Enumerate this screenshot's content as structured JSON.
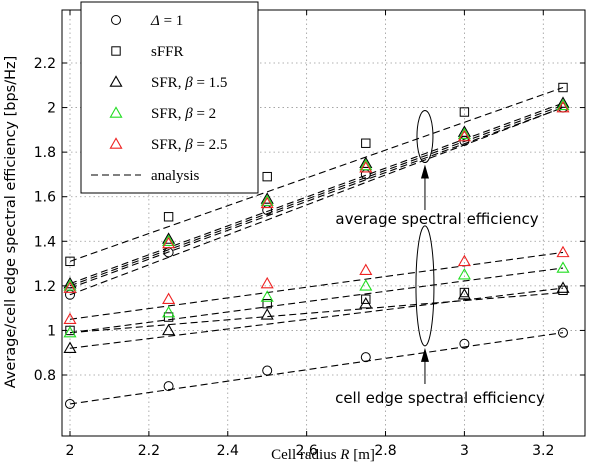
{
  "chart_data": {
    "type": "scatter",
    "xlabel": "Cell radius R [m]",
    "ylabel": "Average/cell edge spectral efficiency [bps/Hz]",
    "xlim": [
      2,
      3.3
    ],
    "ylim": [
      0.6,
      2.3
    ],
    "x_ticks": [
      "2",
      "2.2",
      "2.4",
      "2.6",
      "2.8",
      "3",
      "3.2"
    ],
    "y_ticks": [
      "0.8",
      "1",
      "1.2",
      "1.4",
      "1.6",
      "1.8",
      "2",
      "2.2"
    ],
    "grid": true,
    "legend_position": "top-left",
    "x": [
      2,
      2.25,
      2.5,
      2.75,
      3,
      3.25
    ],
    "series": [
      {
        "name": "Δ = 1",
        "metric": "average",
        "marker": "circle",
        "color": "#000000",
        "values": [
          1.16,
          1.35,
          1.54,
          1.7,
          1.85,
          2.0
        ]
      },
      {
        "name": "sFFR",
        "metric": "average",
        "marker": "square",
        "color": "#000000",
        "values": [
          1.31,
          1.51,
          1.69,
          1.84,
          1.98,
          2.09
        ]
      },
      {
        "name": "SFR, β = 1.5",
        "metric": "average",
        "marker": "triangle",
        "color": "#000000",
        "values": [
          1.21,
          1.41,
          1.59,
          1.75,
          1.89,
          2.02
        ]
      },
      {
        "name": "SFR, β = 2",
        "metric": "average",
        "marker": "triangle",
        "color": "#22dd22",
        "values": [
          1.2,
          1.4,
          1.58,
          1.74,
          1.88,
          2.01
        ]
      },
      {
        "name": "SFR, β = 2.5",
        "metric": "average",
        "marker": "triangle",
        "color": "#ee2222",
        "values": [
          1.19,
          1.39,
          1.57,
          1.73,
          1.87,
          2.0
        ]
      },
      {
        "name": "Δ = 1",
        "metric": "cell edge",
        "marker": "circle",
        "color": "#000000",
        "values": [
          0.67,
          0.75,
          0.82,
          0.88,
          0.94,
          0.99
        ]
      },
      {
        "name": "sFFR",
        "metric": "cell edge",
        "marker": "square",
        "color": "#000000",
        "values": [
          1.0,
          1.06,
          1.12,
          1.14,
          1.17,
          1.18
        ]
      },
      {
        "name": "SFR, β = 1.5",
        "metric": "cell edge",
        "marker": "triangle",
        "color": "#000000",
        "values": [
          0.92,
          1.0,
          1.07,
          1.12,
          1.16,
          1.19
        ]
      },
      {
        "name": "SFR, β = 2",
        "metric": "cell edge",
        "marker": "triangle",
        "color": "#22dd22",
        "values": [
          0.99,
          1.08,
          1.15,
          1.2,
          1.25,
          1.28
        ]
      },
      {
        "name": "SFR, β = 2.5",
        "metric": "cell edge",
        "marker": "triangle",
        "color": "#ee2222",
        "values": [
          1.05,
          1.14,
          1.21,
          1.27,
          1.31,
          1.35
        ]
      }
    ],
    "analysis_lines": [
      {
        "metric": "average",
        "x": [
          2,
          3.25
        ],
        "y": [
          1.16,
          2.0
        ]
      },
      {
        "metric": "average",
        "x": [
          2,
          3.25
        ],
        "y": [
          1.31,
          2.09
        ]
      },
      {
        "metric": "average",
        "x": [
          2,
          3.25
        ],
        "y": [
          1.21,
          2.02
        ]
      },
      {
        "metric": "average",
        "x": [
          2,
          3.25
        ],
        "y": [
          1.2,
          2.01
        ]
      },
      {
        "metric": "average",
        "x": [
          2,
          3.25
        ],
        "y": [
          1.19,
          2.0
        ]
      },
      {
        "metric": "cell edge",
        "x": [
          2,
          3.25
        ],
        "y": [
          0.67,
          0.99
        ]
      },
      {
        "metric": "cell edge",
        "x": [
          2,
          3.25
        ],
        "y": [
          0.99,
          1.17
        ]
      },
      {
        "metric": "cell edge",
        "x": [
          2,
          3.25
        ],
        "y": [
          0.92,
          1.19
        ]
      },
      {
        "metric": "cell edge",
        "x": [
          2,
          3.25
        ],
        "y": [
          0.99,
          1.28
        ]
      },
      {
        "metric": "cell edge",
        "x": [
          2,
          3.25
        ],
        "y": [
          1.05,
          1.35
        ]
      }
    ],
    "legend": {
      "entries": [
        {
          "label_prefix": "",
          "symbol": "Δ",
          "label_suffix": " = 1",
          "marker": "circle",
          "color": "#000000"
        },
        {
          "label_prefix": "sFFR",
          "symbol": "",
          "label_suffix": "",
          "marker": "square",
          "color": "#000000"
        },
        {
          "label_prefix": "SFR, ",
          "symbol": "β",
          "label_suffix": " = 1.5",
          "marker": "triangle",
          "color": "#000000"
        },
        {
          "label_prefix": "SFR, ",
          "symbol": "β",
          "label_suffix": " = 2",
          "marker": "triangle",
          "color": "#22dd22"
        },
        {
          "label_prefix": "SFR, ",
          "symbol": "β",
          "label_suffix": " = 2.5",
          "marker": "triangle",
          "color": "#ee2222"
        },
        {
          "label_prefix": "analysis",
          "symbol": "",
          "label_suffix": "",
          "marker": "dashed-line",
          "color": "#000000"
        }
      ]
    },
    "annotations": [
      {
        "text": "average spectral efficiency"
      },
      {
        "text": "cell edge spectral efficiency"
      }
    ]
  }
}
